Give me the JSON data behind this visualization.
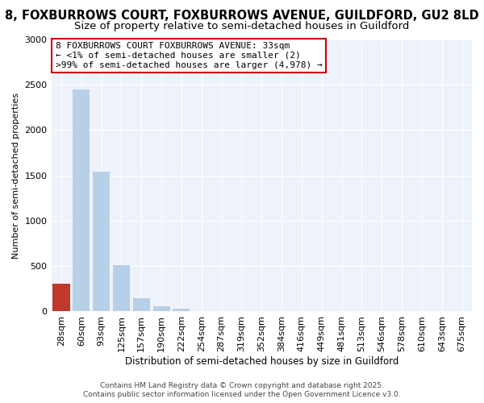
{
  "title1": "8, FOXBURROWS COURT, FOXBURROWS AVENUE, GUILDFORD, GU2 8LD",
  "title2": "Size of property relative to semi-detached houses in Guildford",
  "xlabel": "Distribution of semi-detached houses by size in Guildford",
  "ylabel": "Number of semi-detached properties",
  "categories": [
    "28sqm",
    "60sqm",
    "93sqm",
    "125sqm",
    "157sqm",
    "190sqm",
    "222sqm",
    "254sqm",
    "287sqm",
    "319sqm",
    "352sqm",
    "384sqm",
    "416sqm",
    "449sqm",
    "481sqm",
    "513sqm",
    "546sqm",
    "578sqm",
    "610sqm",
    "643sqm",
    "675sqm"
  ],
  "values": [
    310,
    2450,
    1540,
    510,
    145,
    55,
    35,
    0,
    0,
    0,
    0,
    0,
    0,
    0,
    0,
    0,
    0,
    0,
    0,
    0,
    0
  ],
  "highlight_index": 0,
  "bar_color": "#b8cfe8",
  "highlight_bar_color": "#c0392b",
  "ylim": [
    0,
    3000
  ],
  "yticks": [
    0,
    500,
    1000,
    1500,
    2000,
    2500,
    3000
  ],
  "annotation_text": "8 FOXBURROWS COURT FOXBURROWS AVENUE: 33sqm\n← <1% of semi-detached houses are smaller (2)\n>99% of semi-detached houses are larger (4,978) →",
  "annotation_box_color": "#ffffff",
  "annotation_border_color": "#cc0000",
  "footer1": "Contains HM Land Registry data © Crown copyright and database right 2025.",
  "footer2": "Contains public sector information licensed under the Open Government Licence v3.0.",
  "bg_color": "#ffffff",
  "plot_bg_color": "#eef2fa",
  "grid_color": "#ffffff",
  "title1_fontsize": 10.5,
  "title2_fontsize": 9.5,
  "xlabel_fontsize": 8.5,
  "ylabel_fontsize": 8,
  "tick_fontsize": 8,
  "annotation_fontsize": 8,
  "footer_fontsize": 6.5
}
